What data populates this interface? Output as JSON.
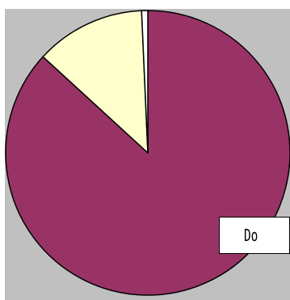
{
  "colors": {
    "background": "#c0c0c0",
    "outline": "#000000"
  },
  "legend": {
    "visible_text": "Do"
  },
  "chart_data": {
    "type": "pie",
    "start_angle_deg": 0,
    "direction": "clockwise",
    "series": [
      {
        "values": [
          86.8,
          12.5,
          0.7
        ],
        "colors": [
          "#993366",
          "#ffffcc",
          "#ffffff"
        ]
      }
    ],
    "legend_placement": "bottom-right"
  }
}
